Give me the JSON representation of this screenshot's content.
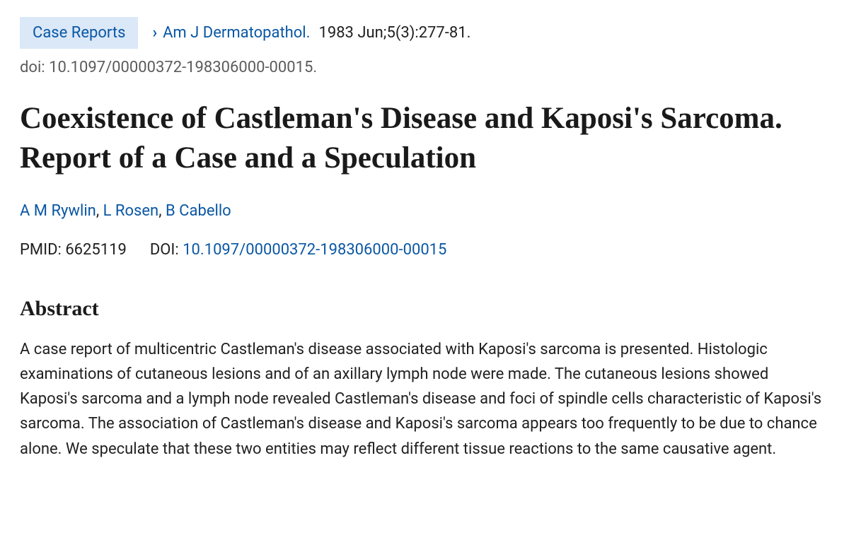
{
  "meta": {
    "pub_type": "Case Reports",
    "journal": "Am J Dermatopathol.",
    "pub_info": "1983 Jun;5(3):277-81.",
    "doi_prefix": "doi:",
    "doi_value": "10.1097/00000372-198306000-00015."
  },
  "title": "Coexistence of Castleman's Disease and Kaposi's Sarcoma. Report of a Case and a Speculation",
  "authors": {
    "a0": "A M Rywlin",
    "a1": "L Rosen",
    "a2": "B Cabello",
    "sep": ", "
  },
  "ids": {
    "pmid_label": "PMID:",
    "pmid": "6625119",
    "doi_label": "DOI:",
    "doi": "10.1097/00000372-198306000-00015"
  },
  "abstract": {
    "heading": "Abstract",
    "text": "A case report of multicentric Castleman's disease associated with Kaposi's sarcoma is presented. Histologic examinations of cutaneous lesions and of an axillary lymph node were made. The cutaneous lesions showed Kaposi's sarcoma and a lymph node revealed Castleman's disease and foci of spindle cells characteristic of Kaposi's sarcoma. The association of Castleman's disease and Kaposi's sarcoma appears too frequently to be due to chance alone. We speculate that these two entities may reflect different tissue reactions to the same causative agent."
  }
}
